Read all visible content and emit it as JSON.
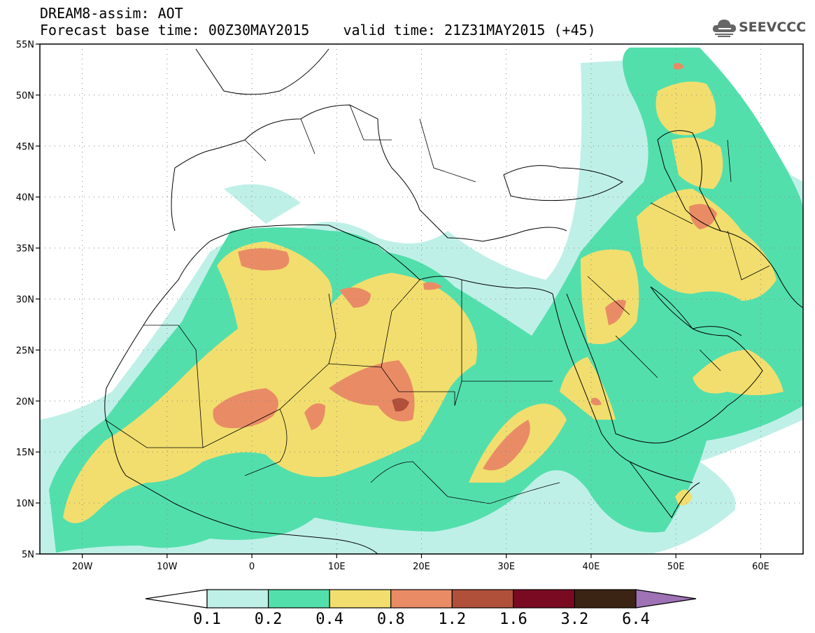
{
  "header": {
    "line1": "DREAM8-assim: AOT",
    "line2": "Forecast base time: 00Z30MAY2015    valid time: 21Z31MAY2015 (+45)"
  },
  "logo": {
    "text": "SEEVCCC",
    "icon": "cloud-icon"
  },
  "map": {
    "lat_ticks": [
      "55N",
      "50N",
      "45N",
      "40N",
      "35N",
      "30N",
      "25N",
      "20N",
      "15N",
      "10N",
      "5N"
    ],
    "lon_ticks": [
      "20W",
      "10W",
      "0",
      "10E",
      "20E",
      "30E",
      "40E",
      "50E",
      "60E"
    ],
    "lon_range": [
      -25,
      65
    ],
    "lat_range": [
      5,
      55
    ],
    "grid": "dotted"
  },
  "colorbar": {
    "labels": [
      "0.1",
      "0.2",
      "0.4",
      "0.8",
      "1.2",
      "1.6",
      "3.2",
      "6.4"
    ],
    "colors": [
      "#ffffff",
      "#bff0e8",
      "#53dfac",
      "#f2de6e",
      "#e98c66",
      "#b0503a",
      "#7a0a22",
      "#3b2414",
      "#9e72b5"
    ]
  }
}
